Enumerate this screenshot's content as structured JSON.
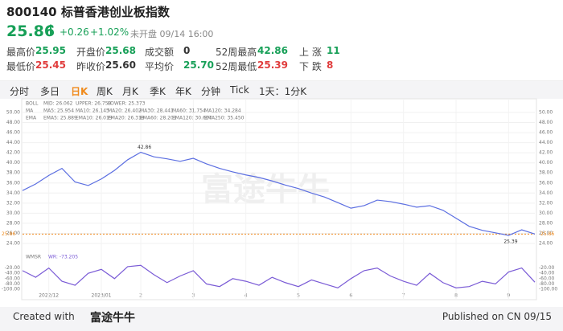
{
  "header": {
    "title": "800140 标普香港创业板指数",
    "price": "25.86",
    "arrow": "↑",
    "change": "+0.26",
    "change_pct": "+1.02%",
    "status": "未开盘 09/14 16:00"
  },
  "stats": {
    "rows": [
      [
        {
          "label": "最高价",
          "value": "25.95"
        },
        {
          "label": "开盘价",
          "value": "25.68"
        },
        {
          "label": "成交额",
          "value": "0"
        },
        {
          "label": "52周最高",
          "value": "42.86"
        },
        {
          "label": "上 涨",
          "value": "11"
        }
      ],
      [
        {
          "label": "最低价",
          "value": "25.45"
        },
        {
          "label": "昨收价",
          "value": "25.60"
        },
        {
          "label": "平均价",
          "value": "25.70"
        },
        {
          "label": "52周最低",
          "value": "25.39"
        },
        {
          "label": "下 跌",
          "value": "8"
        }
      ]
    ]
  },
  "tabs": [
    "分时",
    "多日",
    "日K",
    "周K",
    "月K",
    "季K",
    "年K",
    "分钟",
    "Tick",
    "1天：1分K"
  ],
  "chart_data": [
    {
      "type": "line",
      "color": "#5b6ee1",
      "indicator_labels": [
        [
          "BOLL",
          "MID: 26.062",
          "UPPER: 26.758",
          "LOWER: 25.373"
        ],
        [
          "MA",
          "MA5: 25.954",
          "MA10: 26.145",
          "MA20: 26.402",
          "MA30: 28.441",
          "MA60: 31.754",
          "MA120: 34.284"
        ],
        [
          "EMA",
          "EMA5: 25.889",
          "EMA10: 26.019",
          "EMA20: 26.318",
          "EMA60: 28.201",
          "EMA120: 30.607",
          "EMA250: 35.450"
        ]
      ],
      "categories": [
        null,
        null,
        "2022/12",
        null,
        null,
        null,
        "2023/01",
        null,
        null,
        "2",
        null,
        null,
        null,
        "3",
        null,
        null,
        null,
        "4",
        null,
        null,
        null,
        "5",
        null,
        null,
        null,
        "6",
        null,
        null,
        null,
        "7",
        null,
        null,
        null,
        "8",
        null,
        null,
        null,
        "9",
        null,
        null
      ],
      "values": [
        34.5,
        35.8,
        37.5,
        38.9,
        36.2,
        35.5,
        36.8,
        38.5,
        40.6,
        42.1,
        41.2,
        40.8,
        40.3,
        40.9,
        39.8,
        38.9,
        38.2,
        37.6,
        37.1,
        36.4,
        35.6,
        34.9,
        34.0,
        33.2,
        32.1,
        31.0,
        31.5,
        32.6,
        32.3,
        31.8,
        31.2,
        31.5,
        30.6,
        29.0,
        27.4,
        26.6,
        26.1,
        25.6,
        26.7,
        25.86
      ],
      "ylim": [
        24,
        50
      ],
      "yticks": [
        {
          "value": 24,
          "label": "24.00"
        },
        {
          "value": 26,
          "label": "26.00"
        },
        {
          "value": 28,
          "label": "28.00"
        },
        {
          "value": 30,
          "label": "30.00"
        },
        {
          "value": 32,
          "label": "32.00"
        },
        {
          "value": 34,
          "label": "34.00"
        },
        {
          "value": 36,
          "label": "36.00"
        },
        {
          "value": 38,
          "label": "38.00"
        },
        {
          "value": 40,
          "label": "40.00"
        },
        {
          "value": 42,
          "label": "42.00"
        },
        {
          "value": 44,
          "label": "44.00"
        },
        {
          "value": 46,
          "label": "46.00"
        },
        {
          "value": 48,
          "label": "48.00"
        },
        {
          "value": 50,
          "label": "50.00"
        }
      ],
      "reference_line": {
        "value": 25.86,
        "label": "25.86"
      },
      "max_label": "42.86",
      "min_label": "25.39",
      "grid": true
    },
    {
      "type": "line",
      "title": "WMSR",
      "legend": "WR: -73.205",
      "color": "#7a5bd6",
      "values": [
        -30,
        -55,
        -20,
        -70,
        -85,
        -40,
        -25,
        -60,
        -15,
        -10,
        -45,
        -75,
        -50,
        -30,
        -80,
        -90,
        -60,
        -70,
        -85,
        -55,
        -75,
        -90,
        -65,
        -80,
        -95,
        -60,
        -30,
        -20,
        -50,
        -70,
        -85,
        -40,
        -75,
        -95,
        -90,
        -70,
        -80,
        -35,
        -20,
        -73.2
      ],
      "ylim": [
        -100,
        0
      ],
      "yticks": [
        {
          "value": -20,
          "label": "-20.00"
        },
        {
          "value": -40,
          "label": "-40.00"
        },
        {
          "value": -60,
          "label": "-60.00"
        },
        {
          "value": -80,
          "label": "-80.00"
        },
        {
          "value": -100,
          "label": "-100.00"
        }
      ]
    }
  ],
  "watermark": "富途牛牛",
  "footer": {
    "created": "Created with",
    "brand": "富途牛牛",
    "published": "Published on CN 09/15"
  }
}
